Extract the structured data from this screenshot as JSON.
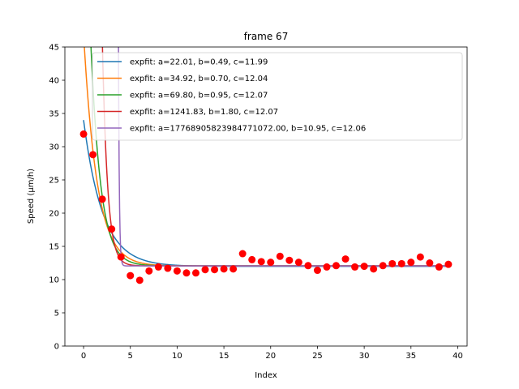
{
  "chart_data": {
    "type": "scatter",
    "title": "frame 67",
    "xlabel": "Index",
    "ylabel": "Speed (µm/h)",
    "xlim": [
      -2,
      41
    ],
    "ylim": [
      0,
      45
    ],
    "xticks": [
      0,
      5,
      10,
      15,
      20,
      25,
      30,
      35,
      40
    ],
    "yticks": [
      0,
      5,
      10,
      15,
      20,
      25,
      30,
      35,
      40,
      45
    ],
    "grid": false,
    "legend_position": "upper right",
    "points": {
      "color": "#ff0000",
      "x": [
        0,
        1,
        2,
        3,
        4,
        5,
        6,
        7,
        8,
        9,
        10,
        11,
        12,
        13,
        14,
        15,
        16,
        17,
        18,
        19,
        20,
        21,
        22,
        23,
        24,
        25,
        26,
        27,
        28,
        29,
        30,
        31,
        32,
        33,
        34,
        35,
        36,
        37,
        38,
        39
      ],
      "y": [
        31.9,
        28.8,
        22.1,
        17.6,
        13.4,
        10.6,
        9.9,
        11.3,
        11.9,
        11.7,
        11.3,
        11.0,
        11.0,
        11.5,
        11.5,
        11.6,
        11.6,
        13.9,
        13.0,
        12.7,
        12.6,
        13.5,
        12.9,
        12.6,
        12.1,
        11.4,
        11.9,
        12.1,
        13.1,
        11.9,
        12.0,
        11.6,
        12.1,
        12.4,
        12.4,
        12.6,
        13.4,
        12.5,
        11.9,
        12.3
      ]
    },
    "series": [
      {
        "name": "expfit: a=22.01, b=0.49, c=11.99",
        "a": 22.01,
        "b": 0.49,
        "c": 11.99,
        "color": "#1f77b4"
      },
      {
        "name": "expfit: a=34.92, b=0.70, c=12.04",
        "a": 34.92,
        "b": 0.7,
        "c": 12.04,
        "color": "#ff7f0e"
      },
      {
        "name": "expfit: a=69.80, b=0.95, c=12.07",
        "a": 69.8,
        "b": 0.95,
        "c": 12.07,
        "color": "#2ca02c"
      },
      {
        "name": "expfit: a=1241.83, b=1.80, c=12.07",
        "a": 1241.83,
        "b": 1.8,
        "c": 12.07,
        "color": "#d62728"
      },
      {
        "name": "expfit: a=17768905823984771072.00, b=10.95, c=12.06",
        "a": 1.7768905823984771e+19,
        "b": 10.95,
        "c": 12.06,
        "color": "#9467bd"
      }
    ]
  }
}
